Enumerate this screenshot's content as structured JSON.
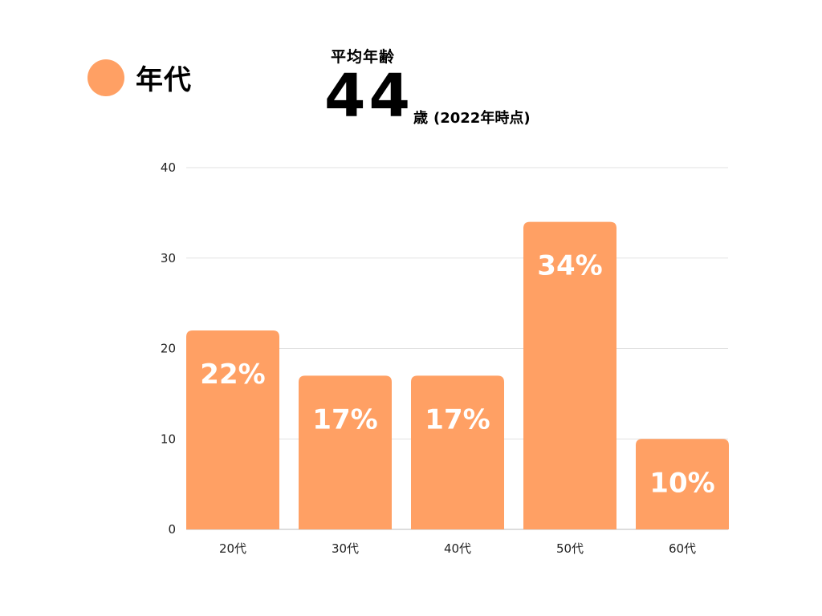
{
  "legend": {
    "label": "年代",
    "color": "#ffa064"
  },
  "average": {
    "title": "平均年齢",
    "value": "44",
    "unit": "歳",
    "note": "(2022年時点)"
  },
  "chart_data": {
    "type": "bar",
    "categories": [
      "20代",
      "30代",
      "40代",
      "50代",
      "60代"
    ],
    "values": [
      22,
      17,
      17,
      34,
      10
    ],
    "data_labels": [
      "22%",
      "17%",
      "17%",
      "34%",
      "10%"
    ],
    "ylim": [
      0,
      40
    ],
    "yticks": [
      0,
      10,
      20,
      30,
      40
    ],
    "grid": true,
    "bar_color": "#ffa064",
    "title": "",
    "xlabel": "",
    "ylabel": ""
  }
}
